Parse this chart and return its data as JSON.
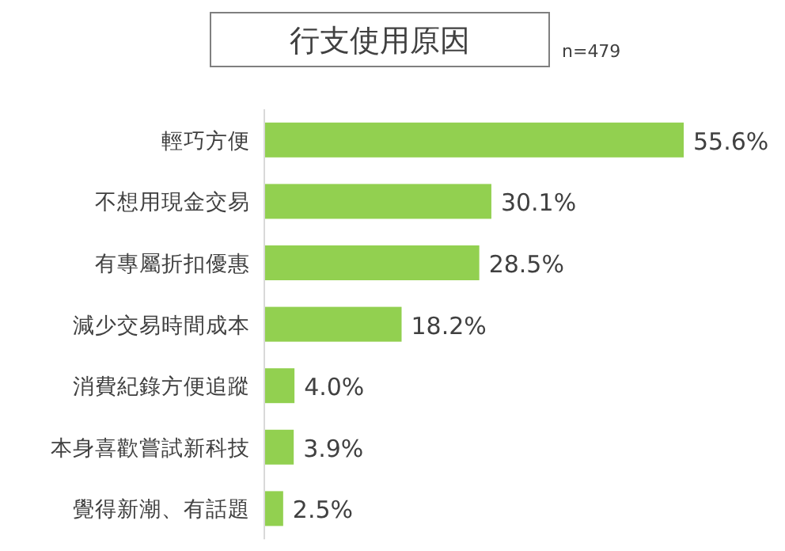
{
  "chart_data": {
    "type": "bar",
    "orientation": "horizontal",
    "title": "行支使用原因",
    "annotations": [
      "n=479"
    ],
    "categories": [
      "輕巧方便",
      "不想用現金交易",
      "有專屬折扣優惠",
      "減少交易時間成本",
      "消費紀錄方便追蹤",
      "本身喜歡嘗試新科技",
      "覺得新潮、有話題"
    ],
    "values": [
      55.6,
      30.1,
      28.5,
      18.2,
      4.0,
      3.9,
      2.5
    ],
    "value_labels": [
      "55.6%",
      "30.1%",
      "28.5%",
      "18.2%",
      "4.0%",
      "3.9%",
      "2.5%"
    ],
    "color": "#92d050"
  }
}
